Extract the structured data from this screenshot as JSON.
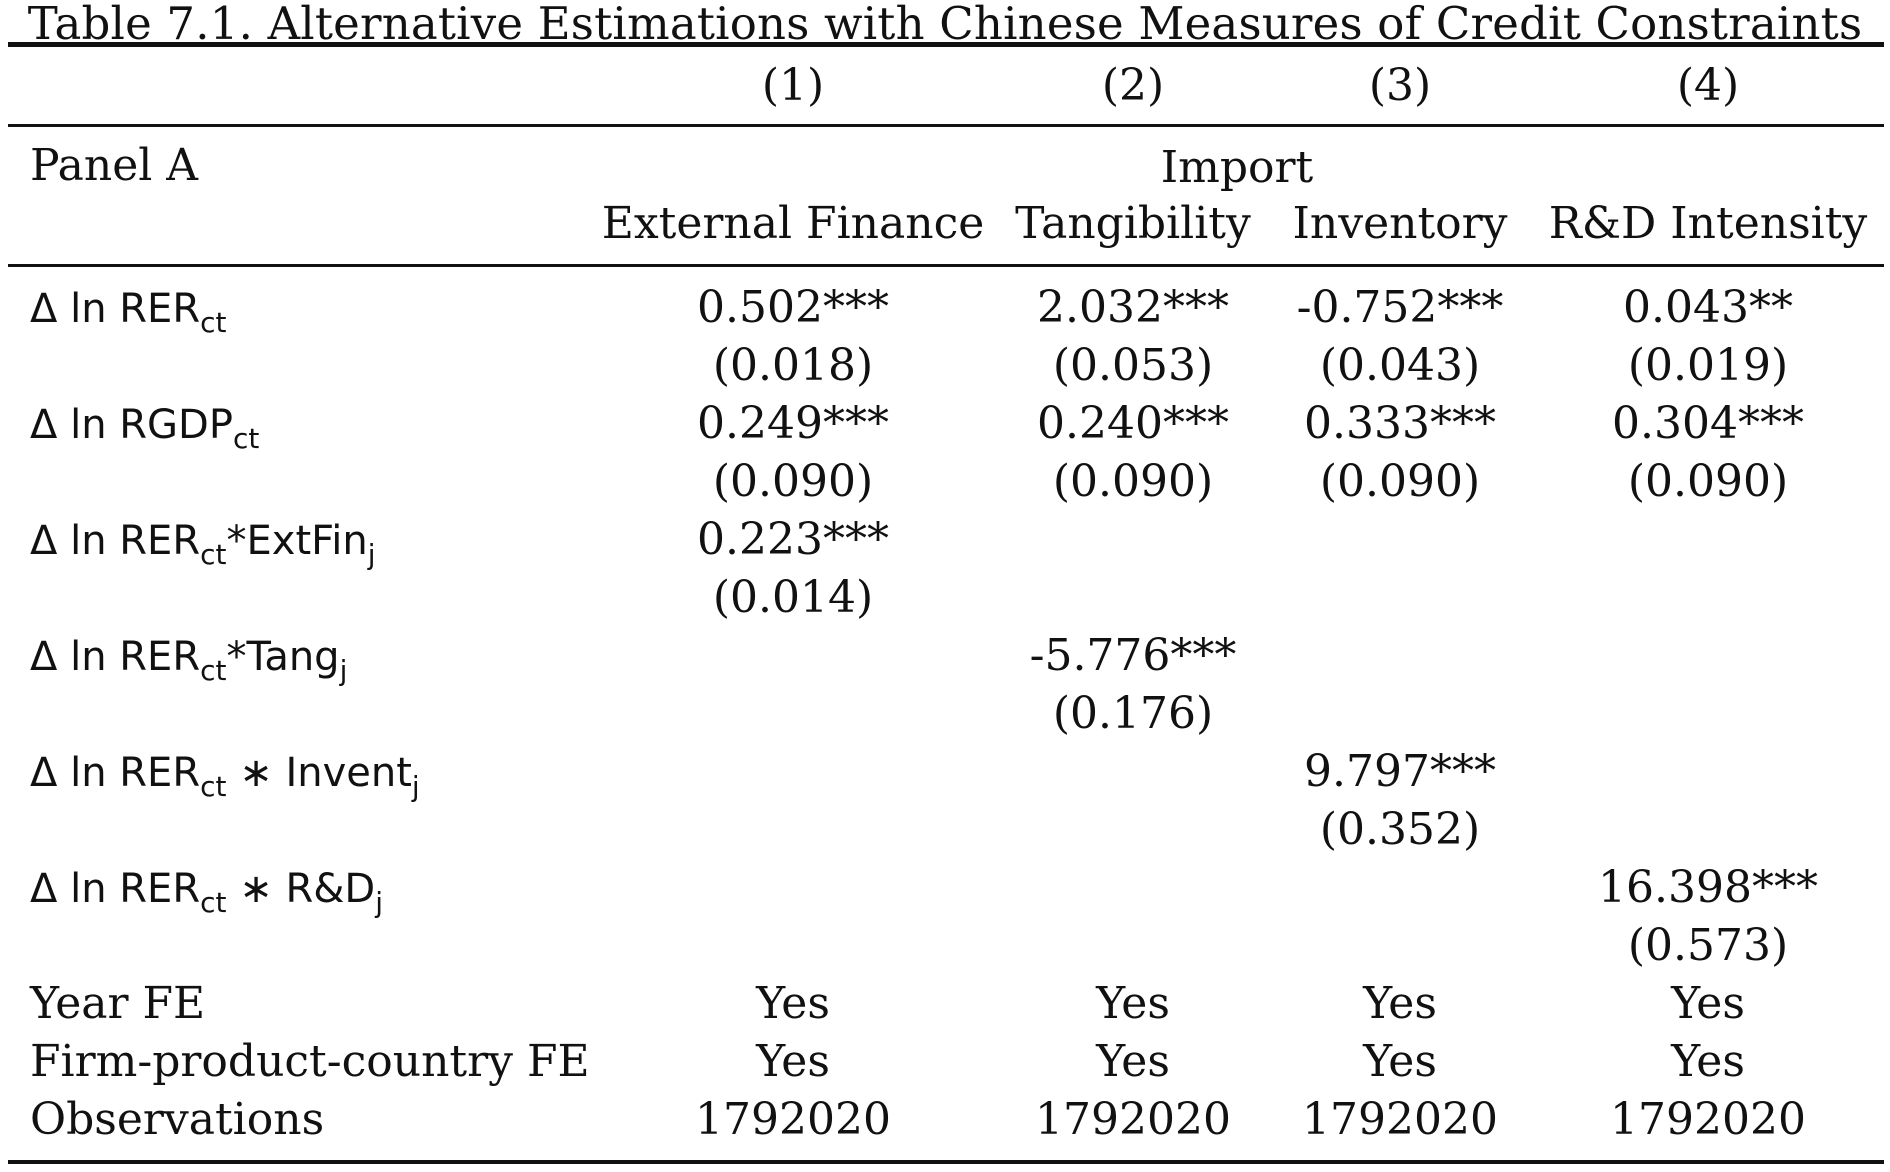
{
  "caption": "Table 7.1. Alternative Estimations with Chinese Measures of Credit Constraints",
  "col_numbers": [
    "(1)",
    "(2)",
    "(3)",
    "(4)"
  ],
  "panel_label": "Panel A",
  "group_header": "Import",
  "col_labels": [
    "External Finance",
    "Tangibility",
    "Inventory",
    "R&D Intensity"
  ],
  "rows": {
    "rer": {
      "prefix": "Δ ln RER",
      "sub": "ct",
      "coef": [
        "0.502***",
        "2.032***",
        "-0.752***",
        "0.043**"
      ],
      "se": [
        "(0.018)",
        "(0.053)",
        "(0.043)",
        "(0.019)"
      ]
    },
    "rgdp": {
      "prefix": "Δ ln RGDP",
      "sub": "ct",
      "coef": [
        "0.249***",
        "0.240***",
        "0.333***",
        "0.304***"
      ],
      "se": [
        "(0.090)",
        "(0.090)",
        "(0.090)",
        "(0.090)"
      ]
    },
    "extfin": {
      "prefix": "Δ ln RER",
      "sub": "ct",
      "mid": "*ExtFin",
      "sub2": "j",
      "coef": "0.223***",
      "se": "(0.014)"
    },
    "tang": {
      "prefix": "Δ ln RER",
      "sub": "ct",
      "mid": "*Tang",
      "sub2": "j",
      "coef": "-5.776***",
      "se": "(0.176)"
    },
    "invent": {
      "prefix": "Δ ln RER",
      "sub": "ct",
      "mid": " ∗ Invent",
      "sub2": "j",
      "coef": "9.797***",
      "se": "(0.352)"
    },
    "rd": {
      "prefix": "Δ ln RER",
      "sub": "ct",
      "mid": " ∗ R&D",
      "sub2": "j",
      "coef": "16.398***",
      "se": "(0.573)"
    }
  },
  "footer": {
    "year_fe": {
      "label": "Year FE",
      "values": [
        "Yes",
        "Yes",
        "Yes",
        "Yes"
      ]
    },
    "fpc_fe": {
      "label": "Firm-product-country FE",
      "values": [
        "Yes",
        "Yes",
        "Yes",
        "Yes"
      ]
    },
    "obs": {
      "label": "Observations",
      "values": [
        "1792020",
        "1792020",
        "1792020",
        "1792020"
      ]
    }
  }
}
